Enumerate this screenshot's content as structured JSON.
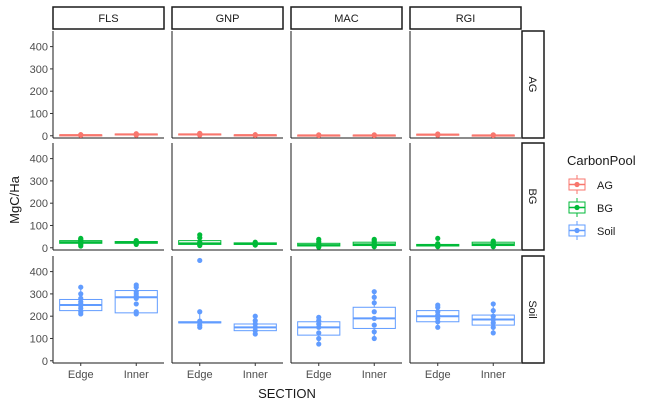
{
  "chart_data": {
    "type": "boxplot",
    "xlabel": "SECTION",
    "ylabel": "MgC/Ha",
    "ylim": [
      -10,
      470
    ],
    "yticks": [
      0,
      100,
      200,
      300,
      400
    ],
    "grid": false,
    "facet_cols": [
      "FLS",
      "GNP",
      "MAC",
      "RGI"
    ],
    "facet_rows": [
      "AG",
      "BG",
      "Soil"
    ],
    "categories": [
      "Edge",
      "Inner"
    ],
    "legend": {
      "title": "CarbonPool",
      "position": "right",
      "items": [
        {
          "label": "AG",
          "color": "#F8766D"
        },
        {
          "label": "BG",
          "color": "#00BA38"
        },
        {
          "label": "Soil",
          "color": "#619CFF"
        }
      ]
    },
    "series": [
      {
        "pool": "AG",
        "site": "FLS",
        "section": "Edge",
        "box": {
          "min": 0,
          "q1": 2,
          "median": 3,
          "q3": 4,
          "max": 6
        },
        "points": [
          2,
          3,
          4,
          5
        ]
      },
      {
        "pool": "AG",
        "site": "FLS",
        "section": "Inner",
        "box": {
          "min": 2,
          "q1": 4,
          "median": 6,
          "q3": 8,
          "max": 10
        },
        "points": [
          3,
          5,
          7,
          9
        ]
      },
      {
        "pool": "AG",
        "site": "GNP",
        "section": "Edge",
        "box": {
          "min": 2,
          "q1": 4,
          "median": 6,
          "q3": 8,
          "max": 12
        },
        "points": [
          3,
          6,
          9,
          11
        ]
      },
      {
        "pool": "AG",
        "site": "GNP",
        "section": "Inner",
        "box": {
          "min": 0,
          "q1": 2,
          "median": 3,
          "q3": 4,
          "max": 6
        },
        "points": [
          2,
          3,
          5
        ]
      },
      {
        "pool": "AG",
        "site": "MAC",
        "section": "Edge",
        "box": {
          "min": 0,
          "q1": 1,
          "median": 2,
          "q3": 3,
          "max": 5
        },
        "points": [
          1,
          2,
          4
        ]
      },
      {
        "pool": "AG",
        "site": "MAC",
        "section": "Inner",
        "box": {
          "min": 0,
          "q1": 1,
          "median": 2,
          "q3": 3,
          "max": 5
        },
        "points": [
          1,
          2,
          4
        ]
      },
      {
        "pool": "AG",
        "site": "RGI",
        "section": "Edge",
        "box": {
          "min": 2,
          "q1": 3,
          "median": 5,
          "q3": 7,
          "max": 9
        },
        "points": [
          3,
          5,
          8
        ]
      },
      {
        "pool": "AG",
        "site": "RGI",
        "section": "Inner",
        "box": {
          "min": 0,
          "q1": 1,
          "median": 2,
          "q3": 3,
          "max": 5
        },
        "points": [
          1,
          3,
          4
        ]
      },
      {
        "pool": "BG",
        "site": "FLS",
        "section": "Edge",
        "box": {
          "min": 10,
          "q1": 20,
          "median": 25,
          "q3": 32,
          "max": 40
        },
        "points": [
          8,
          15,
          20,
          25,
          28,
          33,
          38,
          42
        ]
      },
      {
        "pool": "BG",
        "site": "FLS",
        "section": "Inner",
        "box": {
          "min": 15,
          "q1": 20,
          "median": 24,
          "q3": 28,
          "max": 35
        },
        "points": [
          15,
          20,
          24,
          28,
          32
        ]
      },
      {
        "pool": "BG",
        "site": "GNP",
        "section": "Edge",
        "box": {
          "min": 10,
          "q1": 15,
          "median": 20,
          "q3": 32,
          "max": 45
        },
        "points": [
          10,
          15,
          20,
          25,
          45,
          58
        ]
      },
      {
        "pool": "BG",
        "site": "GNP",
        "section": "Inner",
        "box": {
          "min": 10,
          "q1": 15,
          "median": 18,
          "q3": 22,
          "max": 28
        },
        "points": [
          12,
          16,
          20,
          25
        ]
      },
      {
        "pool": "BG",
        "site": "MAC",
        "section": "Edge",
        "box": {
          "min": 3,
          "q1": 8,
          "median": 12,
          "q3": 20,
          "max": 30
        },
        "points": [
          3,
          8,
          13,
          20,
          28,
          38
        ]
      },
      {
        "pool": "BG",
        "site": "MAC",
        "section": "Inner",
        "box": {
          "min": 5,
          "q1": 10,
          "median": 15,
          "q3": 25,
          "max": 35
        },
        "points": [
          5,
          12,
          18,
          25,
          32,
          38
        ]
      },
      {
        "pool": "BG",
        "site": "RGI",
        "section": "Edge",
        "box": {
          "min": 5,
          "q1": 8,
          "median": 10,
          "q3": 15,
          "max": 20
        },
        "points": [
          5,
          8,
          12,
          18,
          42
        ]
      },
      {
        "pool": "BG",
        "site": "RGI",
        "section": "Inner",
        "box": {
          "min": 5,
          "q1": 10,
          "median": 15,
          "q3": 25,
          "max": 35
        },
        "points": [
          5,
          10,
          18,
          25,
          30
        ]
      },
      {
        "pool": "Soil",
        "site": "FLS",
        "section": "Edge",
        "box": {
          "min": 210,
          "q1": 225,
          "median": 250,
          "q3": 275,
          "max": 330
        },
        "points": [
          210,
          220,
          235,
          248,
          255,
          265,
          280,
          300,
          330
        ]
      },
      {
        "pool": "Soil",
        "site": "FLS",
        "section": "Inner",
        "box": {
          "min": 210,
          "q1": 215,
          "median": 285,
          "q3": 315,
          "max": 340
        },
        "points": [
          210,
          220,
          255,
          280,
          290,
          300,
          310,
          330,
          340
        ]
      },
      {
        "pool": "Soil",
        "site": "GNP",
        "section": "Edge",
        "box": {
          "min": 150,
          "q1": 170,
          "median": 172,
          "q3": 175,
          "max": 220
        },
        "points": [
          150,
          160,
          172,
          178,
          220,
          450
        ]
      },
      {
        "pool": "Soil",
        "site": "GNP",
        "section": "Inner",
        "box": {
          "min": 120,
          "q1": 135,
          "median": 150,
          "q3": 165,
          "max": 200
        },
        "points": [
          120,
          135,
          150,
          165,
          180,
          200
        ]
      },
      {
        "pool": "Soil",
        "site": "MAC",
        "section": "Edge",
        "box": {
          "min": 75,
          "q1": 115,
          "median": 150,
          "q3": 175,
          "max": 200
        },
        "points": [
          75,
          100,
          125,
          150,
          165,
          180,
          195
        ]
      },
      {
        "pool": "Soil",
        "site": "MAC",
        "section": "Inner",
        "box": {
          "min": 100,
          "q1": 145,
          "median": 190,
          "q3": 240,
          "max": 310
        },
        "points": [
          100,
          130,
          160,
          190,
          220,
          260,
          285,
          310
        ]
      },
      {
        "pool": "Soil",
        "site": "RGI",
        "section": "Edge",
        "box": {
          "min": 150,
          "q1": 175,
          "median": 200,
          "q3": 225,
          "max": 250
        },
        "points": [
          150,
          175,
          190,
          205,
          220,
          240,
          250
        ]
      },
      {
        "pool": "Soil",
        "site": "RGI",
        "section": "Inner",
        "box": {
          "min": 125,
          "q1": 160,
          "median": 185,
          "q3": 205,
          "max": 255
        },
        "points": [
          125,
          150,
          170,
          185,
          200,
          225,
          255
        ]
      }
    ]
  }
}
